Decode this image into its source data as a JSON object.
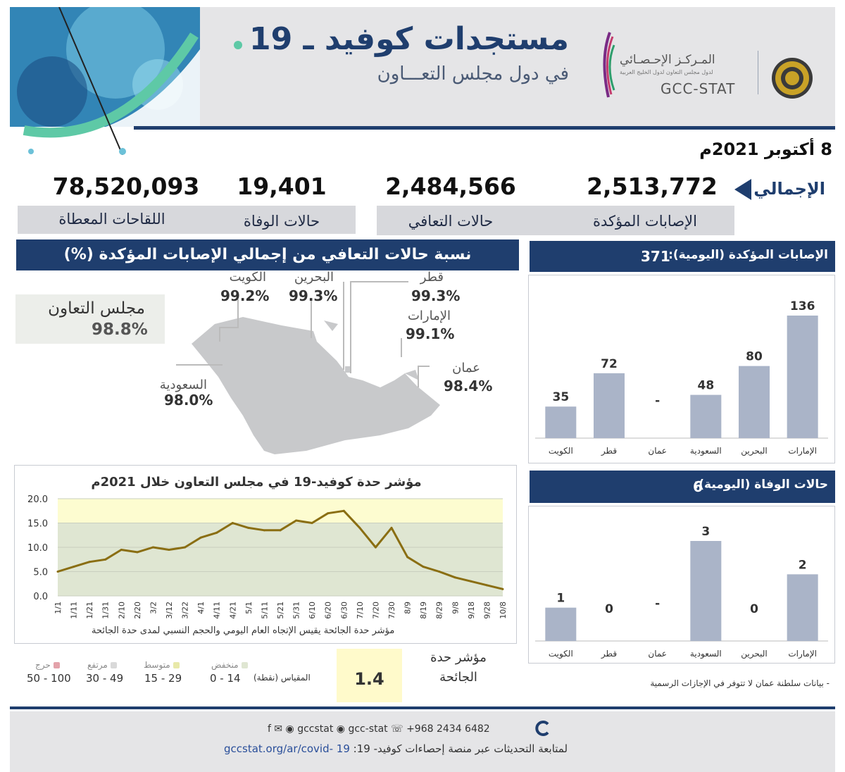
{
  "header": {
    "title": "مستجدات كوفيد ـ 19",
    "subtitle": "في دول مجلس التعـــاون",
    "org_name_ar": "المـركـز الإحـصـائي",
    "org_name_small": "لدول مجلس التعاون لدول الخليج العربية",
    "org_name_en": "GCC-STAT"
  },
  "report_date": "8 أكتوبر 2021م",
  "totals": {
    "label": "الإجمالي",
    "confirmed": {
      "label": "الإصابات المؤكدة",
      "value": "2,513,772"
    },
    "recovered": {
      "label": "حالات التعافي",
      "value": "2,484,566"
    },
    "deaths": {
      "label": "حالات الوفاة",
      "value": "19,401"
    },
    "vaccines": {
      "label": "اللقاحات المعطاة",
      "value": "78,520,093"
    }
  },
  "recovery_section": {
    "title": "نسبة حالات التعافي من إجمالي الإصابات المؤكدة (%)",
    "gcc": {
      "name": "مجلس التعاون",
      "pct": "98.8%"
    },
    "countries": [
      {
        "name": "الكويت",
        "pct": "99.2%"
      },
      {
        "name": "البحرين",
        "pct": "99.3%"
      },
      {
        "name": "قطر",
        "pct": "99.3%"
      },
      {
        "name": "الإمارات",
        "pct": "99.1%"
      },
      {
        "name": "عمان",
        "pct": "98.4%"
      },
      {
        "name": "السعودية",
        "pct": "98.0%"
      }
    ]
  },
  "severity": {
    "title": "مؤشر حدة كوفيد-19 في مجلس التعاون خلال 2021م",
    "note": "مؤشر حدة الجائحة يقيس الإتجاه العام اليومي والحجم النسبي لمدى حدة الجائحة",
    "index_label": "مؤشر حدة الجائحة",
    "index_value": "1.4",
    "scale_label": "المقياس (نقطة)",
    "scale": [
      {
        "name": "منخفض",
        "range": "0 - 14",
        "color": "#dfe6d2"
      },
      {
        "name": "متوسط",
        "range": "15 - 29",
        "color": "#e8e9a9"
      },
      {
        "name": "مرتفع",
        "range": "30 - 49",
        "color": "#d9d9d9"
      },
      {
        "name": "حرج",
        "range": "50 - 100",
        "color": "#e3a2aa"
      }
    ]
  },
  "daily_cases": {
    "title": "الإصابات المؤكدة (اليومية):",
    "total": "371"
  },
  "daily_deaths": {
    "title": "حالات الوفاة (اليومية):",
    "total": "6"
  },
  "oman_note": "- بيانات سلطنة عمان لا تتوفر في الإجازات الرسمية",
  "footer": {
    "contacts": "f  ✉  ◉  gccstat   ◉ gcc-stat   ☏ +968 2434 6482",
    "follow_text": "لمتابعة التحديثات عبر منصة إحصاءات كوفيد- 19:",
    "url": "gccstat.org/ar/covid- 19"
  },
  "colors": {
    "navy": "#1f3e6e",
    "bar": "#aab4c8",
    "line": "#8a6e12",
    "band_green": "#dfe6d2",
    "band_yellow": "#fdfcd0"
  },
  "chart_data": [
    {
      "type": "bar",
      "title": "الإصابات المؤكدة (اليومية):",
      "categories": [
        "الإمارات",
        "البحرين",
        "السعودية",
        "عمان",
        "قطر",
        "الكويت"
      ],
      "values": [
        136,
        80,
        48,
        null,
        72,
        35
      ],
      "value_labels": [
        "136",
        "80",
        "48",
        "-",
        "72",
        "35"
      ],
      "ylim": [
        0,
        136
      ]
    },
    {
      "type": "bar",
      "title": "حالات الوفاة (اليومية):",
      "categories": [
        "الإمارات",
        "البحرين",
        "السعودية",
        "عمان",
        "قطر",
        "الكويت"
      ],
      "values": [
        2,
        0,
        3,
        null,
        0,
        1
      ],
      "value_labels": [
        "2",
        "0",
        "3",
        "-",
        "0",
        "1"
      ],
      "ylim": [
        0,
        3
      ]
    },
    {
      "type": "line",
      "title": "مؤشر حدة كوفيد-19 في مجلس التعاون خلال 2021م",
      "x": [
        "1/1",
        "1/11",
        "1/21",
        "1/31",
        "2/10",
        "2/20",
        "3/2",
        "3/12",
        "3/22",
        "4/1",
        "4/11",
        "4/21",
        "5/1",
        "5/11",
        "5/21",
        "5/31",
        "6/10",
        "6/20",
        "6/30",
        "7/10",
        "7/20",
        "7/30",
        "8/9",
        "8/19",
        "8/29",
        "9/8",
        "9/18",
        "9/28",
        "10/8"
      ],
      "y_ticks": [
        "0.0",
        "5.0",
        "10.0",
        "15.0",
        "20.0"
      ],
      "ylim": [
        0,
        20
      ],
      "series": [
        {
          "values": [
            5.0,
            6.0,
            7.0,
            7.5,
            9.5,
            9.0,
            10.0,
            9.5,
            10.0,
            12.0,
            13.0,
            15.0,
            14.0,
            13.5,
            13.5,
            15.5,
            15.0,
            17.0,
            17.5,
            14.0,
            10.0,
            14.0,
            8.0,
            6.0,
            5.0,
            3.8,
            3.0,
            2.2,
            1.4
          ]
        }
      ]
    }
  ]
}
